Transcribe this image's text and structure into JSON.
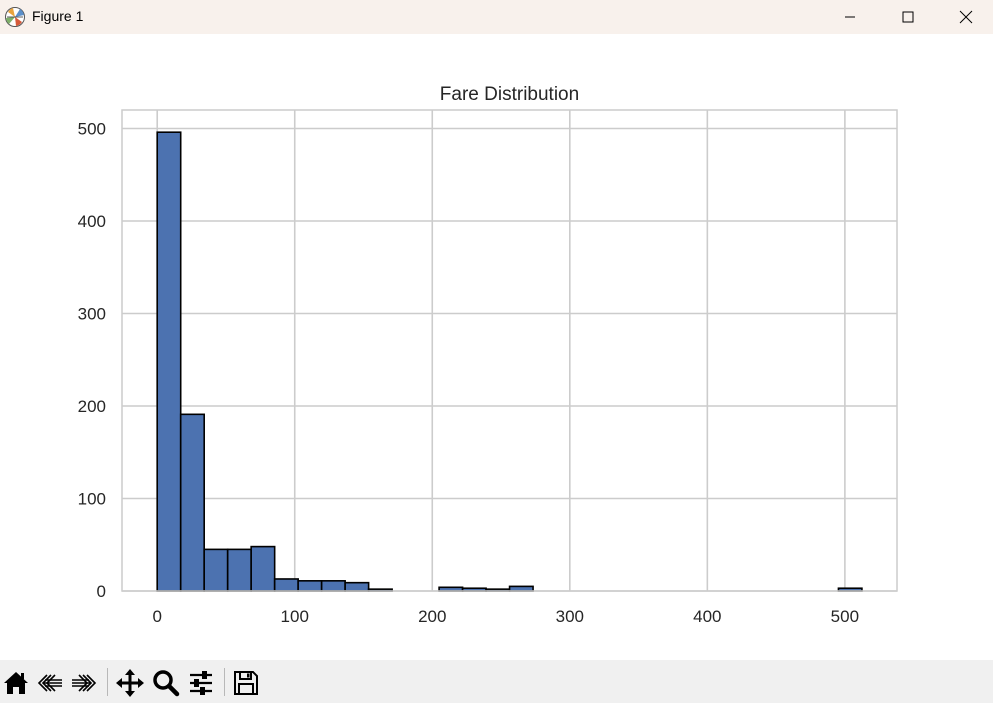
{
  "window": {
    "title": "Figure 1"
  },
  "toolbar": {
    "tools": [
      "home-icon",
      "back-icon",
      "forward-icon",
      "pan-icon",
      "zoom-icon",
      "configure-subplots-icon",
      "save-icon"
    ]
  },
  "colors": {
    "bar_fill": "#4c72b0",
    "bar_edge": "#000000",
    "grid": "#cccccc",
    "frame": "#cccccc"
  },
  "chart_data": {
    "type": "bar",
    "title": "Fare Distribution",
    "xlabel": "",
    "ylabel": "",
    "grid": true,
    "xlim": [
      -25.6,
      537.9
    ],
    "ylim": [
      0,
      520
    ],
    "xticks": [
      0,
      100,
      200,
      300,
      400,
      500
    ],
    "yticks": [
      0,
      100,
      200,
      300,
      400,
      500
    ],
    "bin_width": 17.08,
    "bins": [
      {
        "start": 0.0,
        "count": 496
      },
      {
        "start": 17.08,
        "count": 191
      },
      {
        "start": 34.16,
        "count": 45
      },
      {
        "start": 51.24,
        "count": 45
      },
      {
        "start": 68.32,
        "count": 48
      },
      {
        "start": 85.4,
        "count": 13
      },
      {
        "start": 102.48,
        "count": 11
      },
      {
        "start": 119.56,
        "count": 11
      },
      {
        "start": 136.64,
        "count": 9
      },
      {
        "start": 153.72,
        "count": 2
      },
      {
        "start": 170.8,
        "count": 0
      },
      {
        "start": 187.88,
        "count": 0
      },
      {
        "start": 204.96,
        "count": 4
      },
      {
        "start": 222.04,
        "count": 3
      },
      {
        "start": 239.12,
        "count": 2
      },
      {
        "start": 256.2,
        "count": 5
      },
      {
        "start": 273.28,
        "count": 0
      },
      {
        "start": 290.36,
        "count": 0
      },
      {
        "start": 307.44,
        "count": 0
      },
      {
        "start": 324.52,
        "count": 0
      },
      {
        "start": 341.6,
        "count": 0
      },
      {
        "start": 358.68,
        "count": 0
      },
      {
        "start": 375.76,
        "count": 0
      },
      {
        "start": 392.84,
        "count": 0
      },
      {
        "start": 409.92,
        "count": 0
      },
      {
        "start": 427.0,
        "count": 0
      },
      {
        "start": 444.08,
        "count": 0
      },
      {
        "start": 461.16,
        "count": 0
      },
      {
        "start": 478.24,
        "count": 0
      },
      {
        "start": 495.32,
        "count": 3
      }
    ]
  }
}
